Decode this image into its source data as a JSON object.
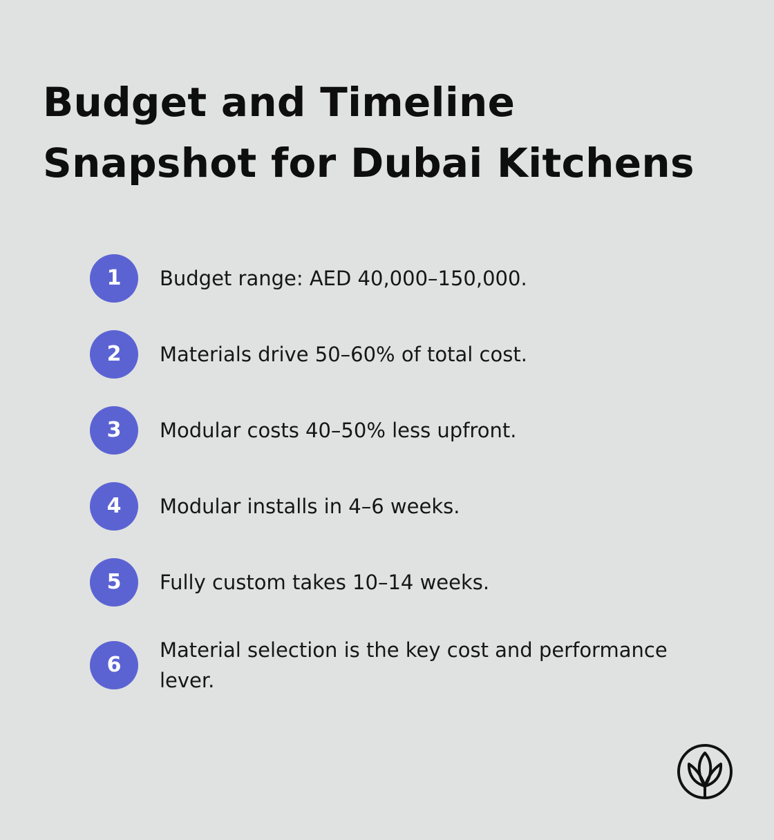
{
  "title": "Budget and Timeline Snapshot for Dubai Kitchens",
  "items": [
    {
      "number": "1",
      "text": "Budget range: AED 40,000–150,000."
    },
    {
      "number": "2",
      "text": "Materials drive 50–60% of total cost."
    },
    {
      "number": "3",
      "text": "Modular costs 40–50% less upfront."
    },
    {
      "number": "4",
      "text": "Modular installs in 4–6 weeks."
    },
    {
      "number": "5",
      "text": "Fully custom takes 10–14 weeks."
    },
    {
      "number": "6",
      "text": "Material selection is the key cost and performance lever."
    }
  ],
  "colors": {
    "background": "#e0e2e1",
    "badge": "#5b63d3",
    "text": "#161616"
  },
  "icons": {
    "logo": "lotus-logo-icon"
  }
}
